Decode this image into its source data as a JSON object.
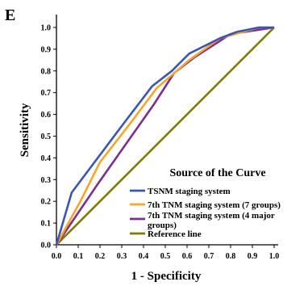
{
  "panel_label": "E",
  "chart_data": {
    "type": "line",
    "xlabel": "1 - Specificity",
    "ylabel": "Sensitivity",
    "xlim": [
      0,
      1
    ],
    "ylim": [
      0,
      1
    ],
    "x_ticks": [
      "0.0",
      "0.1",
      "0.2",
      "0.3",
      "0.4",
      "0.5",
      "0.6",
      "0.7",
      "0.8",
      "0.9",
      "1.0"
    ],
    "y_ticks": [
      "0.0",
      "0.1",
      "0.2",
      "0.3",
      "0.4",
      "0.5",
      "0.6",
      "0.7",
      "0.8",
      "0.9",
      "1.0"
    ],
    "grid": false,
    "legend": {
      "title": "Source of the Curve",
      "placement": "bottom-right"
    },
    "series": [
      {
        "name": "TSNM staging system",
        "color": "#3a55b4",
        "points": [
          [
            0,
            0
          ],
          [
            0.07,
            0.24
          ],
          [
            0.19,
            0.4
          ],
          [
            0.31,
            0.56
          ],
          [
            0.44,
            0.73
          ],
          [
            0.53,
            0.8
          ],
          [
            0.61,
            0.88
          ],
          [
            0.75,
            0.95
          ],
          [
            0.83,
            0.98
          ],
          [
            0.93,
            1.0
          ],
          [
            1.0,
            1.0
          ]
        ]
      },
      {
        "name": "7th TNM staging system (7 groups)",
        "color": "#f6a62a",
        "points": [
          [
            0,
            0
          ],
          [
            0.11,
            0.2
          ],
          [
            0.2,
            0.38
          ],
          [
            0.34,
            0.56
          ],
          [
            0.46,
            0.72
          ],
          [
            0.61,
            0.85
          ],
          [
            0.75,
            0.95
          ],
          [
            0.93,
            1.0
          ],
          [
            1.0,
            1.0
          ]
        ]
      },
      {
        "name": "7th TNM staging system (4 major groups)",
        "color": "#7a2e8e",
        "points": [
          [
            0,
            0
          ],
          [
            0.19,
            0.28
          ],
          [
            0.45,
            0.65
          ],
          [
            0.54,
            0.79
          ],
          [
            0.63,
            0.86
          ],
          [
            0.8,
            0.97
          ],
          [
            1.0,
            1.0
          ]
        ]
      },
      {
        "name": "Reference line",
        "color": "#7f7a00",
        "points": [
          [
            0,
            0
          ],
          [
            1,
            1
          ]
        ]
      }
    ]
  }
}
